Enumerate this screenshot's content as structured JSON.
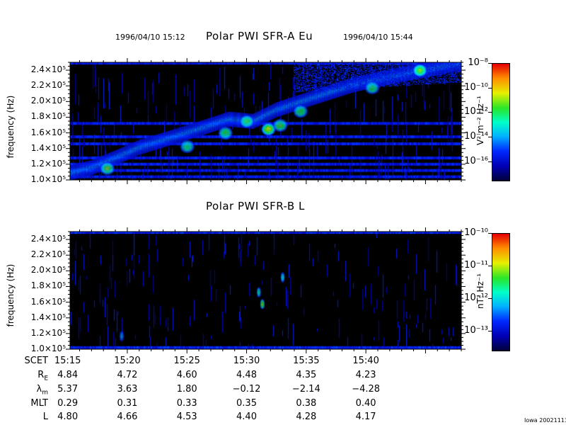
{
  "header": {
    "start_time": "1996/04/10 15:12",
    "end_time": "1996/04/10 15:44",
    "credit": "Iowa 20021113"
  },
  "chart_data": [
    {
      "type": "heatmap",
      "title": "Polar PWI SFR-A Eu",
      "ylabel": "frequency (Hz)",
      "ylim": [
        100000,
        250000
      ],
      "y_ticks": [
        "1.0×10⁵",
        "1.2×10⁵",
        "1.4×10⁵",
        "1.6×10⁵",
        "1.8×10⁵",
        "2.0×10⁵",
        "2.2×10⁵",
        "2.4×10⁵"
      ],
      "y_tick_values": [
        100000,
        120000,
        140000,
        160000,
        180000,
        200000,
        220000,
        240000
      ],
      "x_range_minutes": [
        15.2,
        48.0
      ],
      "colorbar": {
        "label": "V² m⁻² Hz⁻¹",
        "ticks": [
          "10⁻⁸",
          "10⁻¹⁰",
          "10⁻¹²",
          "10⁻¹⁴",
          "10⁻¹⁶"
        ],
        "tick_exponents": [
          -8,
          -10,
          -12,
          -14,
          -16
        ],
        "range_exponent": [
          -17.5,
          -8
        ]
      },
      "emission_track": [
        {
          "t": 15.3,
          "f": 110000
        },
        {
          "t": 17.0,
          "f": 116000
        },
        {
          "t": 19.5,
          "f": 132000
        },
        {
          "t": 21.0,
          "f": 142000
        },
        {
          "t": 24.0,
          "f": 156000
        },
        {
          "t": 26.5,
          "f": 168000
        },
        {
          "t": 28.5,
          "f": 178000
        },
        {
          "t": 30.5,
          "f": 175000
        },
        {
          "t": 32.5,
          "f": 190000
        },
        {
          "t": 35.5,
          "f": 205000
        },
        {
          "t": 39.0,
          "f": 222000
        },
        {
          "t": 43.0,
          "f": 235000
        },
        {
          "t": 47.5,
          "f": 248000
        }
      ],
      "bright_spots": [
        {
          "t": 18.3,
          "f": 115000,
          "level": 0.55
        },
        {
          "t": 25.0,
          "f": 143000,
          "level": 0.4
        },
        {
          "t": 28.2,
          "f": 160000,
          "level": 0.45
        },
        {
          "t": 30.0,
          "f": 175000,
          "level": 0.5
        },
        {
          "t": 31.8,
          "f": 165000,
          "level": 0.6
        },
        {
          "t": 32.8,
          "f": 170000,
          "level": 0.5
        },
        {
          "t": 34.5,
          "f": 188000,
          "level": 0.45
        },
        {
          "t": 40.5,
          "f": 218000,
          "level": 0.45
        },
        {
          "t": 44.5,
          "f": 240000,
          "level": 0.55
        }
      ],
      "constant_bands_hz": [
        104000,
        112000,
        120000,
        128000,
        146000,
        155000,
        172000,
        249000
      ]
    },
    {
      "type": "heatmap",
      "title": "Polar PWI SFR-B L",
      "ylabel": "frequency (Hz)",
      "ylim": [
        100000,
        250000
      ],
      "y_ticks": [
        "1.0×10⁵",
        "1.2×10⁵",
        "1.4×10⁵",
        "1.6×10⁵",
        "1.8×10⁵",
        "2.0×10⁵",
        "2.2×10⁵",
        "2.4×10⁵"
      ],
      "y_tick_values": [
        100000,
        120000,
        140000,
        160000,
        180000,
        200000,
        220000,
        240000
      ],
      "x_range_minutes": [
        15.2,
        48.0
      ],
      "colorbar": {
        "label": "nT² Hz⁻¹",
        "ticks": [
          "10⁻¹⁰",
          "10⁻¹¹",
          "10⁻¹²",
          "10⁻¹³"
        ],
        "tick_exponents": [
          -10,
          -11,
          -12,
          -13
        ],
        "range_exponent": [
          -13.6,
          -10
        ]
      },
      "bright_spots": [
        {
          "t": 31.3,
          "f": 158000,
          "level": 0.6
        },
        {
          "t": 31.0,
          "f": 173000,
          "level": 0.35
        },
        {
          "t": 33.0,
          "f": 192000,
          "level": 0.3
        },
        {
          "t": 19.5,
          "f": 117000,
          "level": 0.2
        }
      ],
      "constant_bands_hz": [
        102000,
        249000
      ]
    }
  ],
  "ephemeris": {
    "time_labels": [
      "15:15",
      "15:20",
      "15:25",
      "15:30",
      "15:35",
      "15:40"
    ],
    "time_minutes": [
      15,
      20,
      25,
      30,
      35,
      40
    ],
    "rows": [
      {
        "label": "SCET",
        "label_sub": "",
        "values": [
          "15:15",
          "15:20",
          "15:25",
          "15:30",
          "15:35",
          "15:40"
        ]
      },
      {
        "label": "R",
        "label_sub": "E",
        "values": [
          "4.84",
          "4.72",
          "4.60",
          "4.48",
          "4.35",
          "4.23"
        ]
      },
      {
        "label": "λ",
        "label_sub": "m",
        "values": [
          "5.37",
          "3.63",
          "1.80",
          "−0.12",
          "−2.14",
          "−4.28"
        ]
      },
      {
        "label": "MLT",
        "label_sub": "",
        "values": [
          "0.29",
          "0.31",
          "0.33",
          "0.35",
          "0.38",
          "0.40"
        ]
      },
      {
        "label": "L",
        "label_sub": "",
        "values": [
          "4.80",
          "4.66",
          "4.53",
          "4.40",
          "4.28",
          "4.17"
        ]
      }
    ]
  },
  "colors": {
    "background": "#ffffff",
    "panel": "#000000",
    "text": "#000000"
  }
}
